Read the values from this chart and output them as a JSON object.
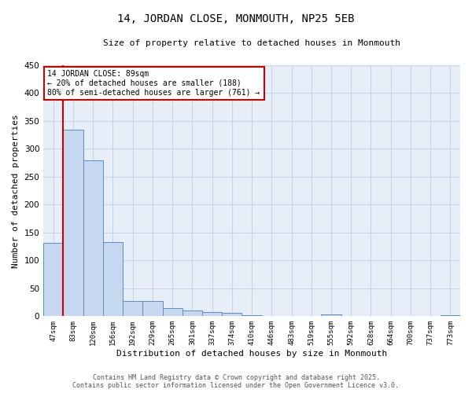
{
  "title_line1": "14, JORDAN CLOSE, MONMOUTH, NP25 5EB",
  "title_line2": "Size of property relative to detached houses in Monmouth",
  "xlabel": "Distribution of detached houses by size in Monmouth",
  "ylabel": "Number of detached properties",
  "categories": [
    "47sqm",
    "83sqm",
    "120sqm",
    "156sqm",
    "192sqm",
    "229sqm",
    "265sqm",
    "301sqm",
    "337sqm",
    "374sqm",
    "410sqm",
    "446sqm",
    "483sqm",
    "519sqm",
    "555sqm",
    "592sqm",
    "628sqm",
    "664sqm",
    "700sqm",
    "737sqm",
    "773sqm"
  ],
  "values": [
    131,
    335,
    280,
    133,
    27,
    27,
    15,
    10,
    7,
    6,
    2,
    0,
    0,
    0,
    3,
    0,
    0,
    0,
    0,
    0,
    2
  ],
  "bar_color": "#c5d8f0",
  "bar_edge_color": "#5b8ec4",
  "red_line_index": 1,
  "annotation_text": "14 JORDAN CLOSE: 89sqm\n← 20% of detached houses are smaller (188)\n80% of semi-detached houses are larger (761) →",
  "annotation_box_color": "#ffffff",
  "annotation_box_edge": "#cc0000",
  "ylim": [
    0,
    450
  ],
  "yticks": [
    0,
    50,
    100,
    150,
    200,
    250,
    300,
    350,
    400,
    450
  ],
  "grid_color": "#c8d4e8",
  "background_color": "#e8eef8",
  "footer_line1": "Contains HM Land Registry data © Crown copyright and database right 2025.",
  "footer_line2": "Contains public sector information licensed under the Open Government Licence v3.0."
}
